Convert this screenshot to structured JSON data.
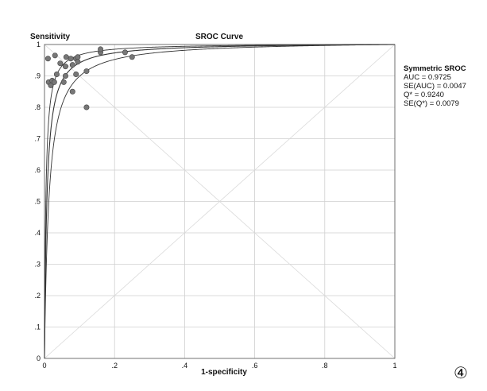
{
  "chart_data": {
    "type": "scatter",
    "title": "SROC Curve",
    "xlabel": "1-specificity",
    "ylabel": "Sensitivity",
    "xlim": [
      0,
      1
    ],
    "ylim": [
      0,
      1
    ],
    "grid": true,
    "x_ticks": [
      "0",
      ".2",
      ".4",
      ".6",
      ".8",
      "1"
    ],
    "y_ticks": [
      "0",
      ".1",
      ".2",
      ".3",
      ".4",
      ".5",
      ".6",
      ".7",
      ".8",
      ".9",
      "1"
    ],
    "studies": [
      {
        "x": 0.01,
        "y": 0.955
      },
      {
        "x": 0.03,
        "y": 0.965
      },
      {
        "x": 0.045,
        "y": 0.94
      },
      {
        "x": 0.06,
        "y": 0.93
      },
      {
        "x": 0.062,
        "y": 0.96
      },
      {
        "x": 0.075,
        "y": 0.955
      },
      {
        "x": 0.08,
        "y": 0.935
      },
      {
        "x": 0.09,
        "y": 0.955
      },
      {
        "x": 0.095,
        "y": 0.96
      },
      {
        "x": 0.095,
        "y": 0.945
      },
      {
        "x": 0.012,
        "y": 0.88
      },
      {
        "x": 0.018,
        "y": 0.87
      },
      {
        "x": 0.022,
        "y": 0.885
      },
      {
        "x": 0.028,
        "y": 0.88
      },
      {
        "x": 0.035,
        "y": 0.905
      },
      {
        "x": 0.055,
        "y": 0.88
      },
      {
        "x": 0.06,
        "y": 0.9
      },
      {
        "x": 0.08,
        "y": 0.85
      },
      {
        "x": 0.09,
        "y": 0.905
      },
      {
        "x": 0.12,
        "y": 0.915
      },
      {
        "x": 0.12,
        "y": 0.8
      },
      {
        "x": 0.16,
        "y": 0.975
      },
      {
        "x": 0.16,
        "y": 0.985
      },
      {
        "x": 0.23,
        "y": 0.975
      },
      {
        "x": 0.25,
        "y": 0.96
      }
    ],
    "curves": [
      {
        "role": "sroc",
        "dor": 145
      },
      {
        "role": "ci-upper",
        "dor": 260
      },
      {
        "role": "ci-lower",
        "dor": 80
      }
    ],
    "legend": {
      "placement": "right",
      "title": "Symmetric SROC",
      "lines": [
        "AUC = 0.9725",
        "SE(AUC) = 0.0047",
        "Q* = 0.9240",
        "SE(Q*) = 0.0079"
      ]
    }
  },
  "panel_mark": "④",
  "colors": {
    "grid": "#cfcfcf",
    "axis": "#555555",
    "curve": "#333333",
    "point": "#777777",
    "point_stroke": "#444444"
  }
}
